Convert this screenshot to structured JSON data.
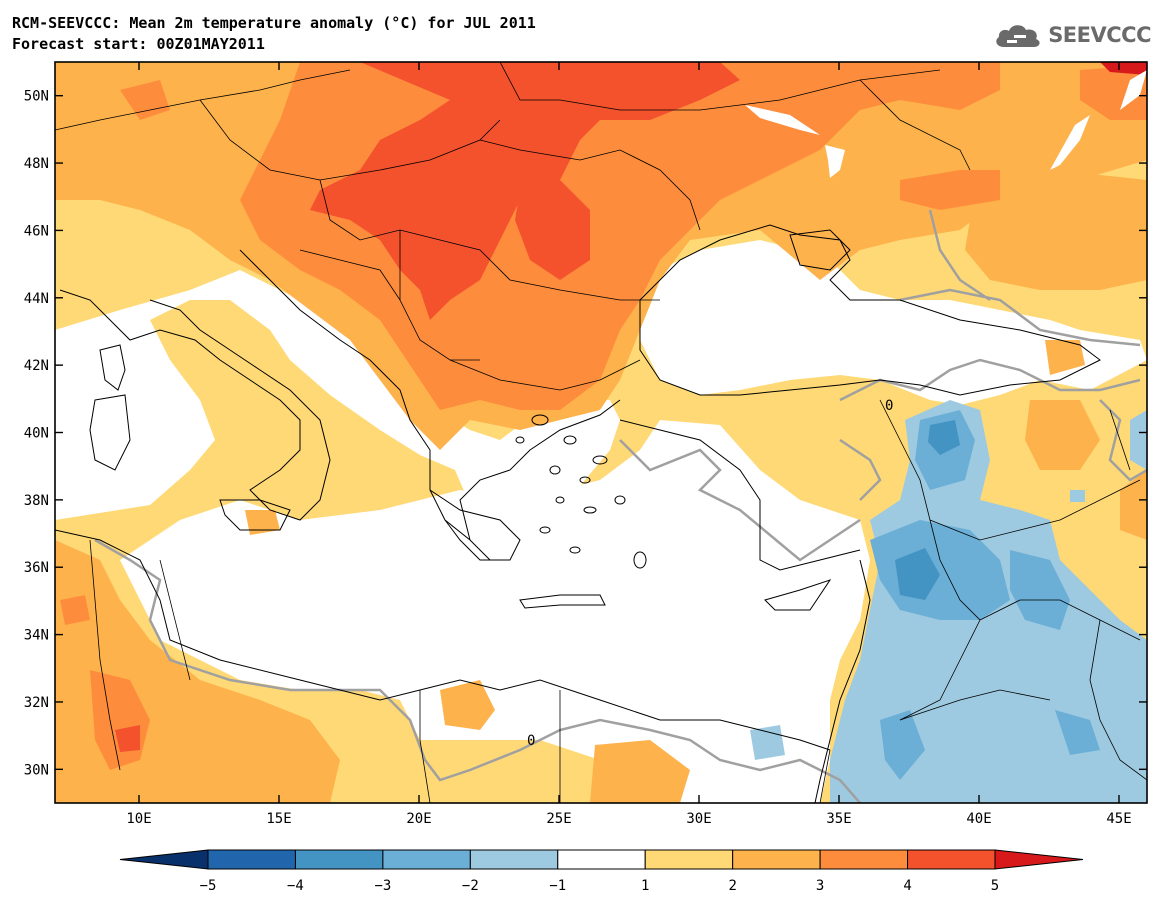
{
  "title": {
    "line1": "RCM-SEEVCCC: Mean 2m temperature anomaly (°C) for JUL 2011",
    "line2": "Forecast start: 00Z01MAY2011"
  },
  "logo": {
    "text": "SEEVCCC",
    "icon": "cloud-logo-icon"
  },
  "map": {
    "lon_range": [
      7,
      46
    ],
    "lat_range": [
      29,
      51
    ],
    "lat_ticks": [
      {
        "value": 50,
        "label": "50N"
      },
      {
        "value": 48,
        "label": "48N"
      },
      {
        "value": 46,
        "label": "46N"
      },
      {
        "value": 44,
        "label": "44N"
      },
      {
        "value": 42,
        "label": "42N"
      },
      {
        "value": 40,
        "label": "40N"
      },
      {
        "value": 38,
        "label": "38N"
      },
      {
        "value": 36,
        "label": "36N"
      },
      {
        "value": 34,
        "label": "34N"
      },
      {
        "value": 32,
        "label": "32N"
      },
      {
        "value": 30,
        "label": "30N"
      }
    ],
    "lon_ticks": [
      {
        "value": 10,
        "label": "10E"
      },
      {
        "value": 15,
        "label": "15E"
      },
      {
        "value": 20,
        "label": "20E"
      },
      {
        "value": 25,
        "label": "25E"
      },
      {
        "value": 30,
        "label": "30E"
      },
      {
        "value": 35,
        "label": "35E"
      },
      {
        "value": 40,
        "label": "40E"
      },
      {
        "value": 45,
        "label": "45E"
      }
    ],
    "zero_contour_label": "0"
  },
  "colorbar": {
    "ticks": [
      "−5",
      "−4",
      "−3",
      "−2",
      "−1",
      "1",
      "2",
      "3",
      "4",
      "5"
    ],
    "colors": [
      "#2166ac",
      "#4393c3",
      "#6baed6",
      "#9ecae1",
      "#ffffff",
      "#fed976",
      "#feb24c",
      "#fd8d3c",
      "#f4522d"
    ],
    "under_color": "#08306b",
    "over_color": "#d7191c"
  },
  "colors": {
    "c1": "#fed976",
    "c2": "#feb24c",
    "c3": "#fd8d3c",
    "c4": "#f4522d",
    "b1": "#9ecae1",
    "b2": "#6baed6",
    "b3": "#4393c3"
  }
}
